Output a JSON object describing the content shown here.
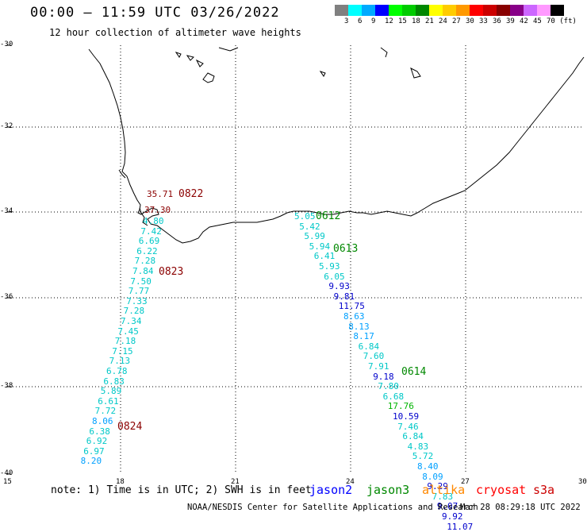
{
  "title": "00:00 – 11:59 UTC 03/26/2022",
  "subtitle": "12 hour collection of altimeter wave heights",
  "legend": {
    "colors": [
      "#808080",
      "#00ffff",
      "#00aaff",
      "#0000ff",
      "#00ff00",
      "#00cc00",
      "#008800",
      "#ffff00",
      "#ffcc00",
      "#ff9900",
      "#ff0000",
      "#cc0000",
      "#880000",
      "#880088",
      "#cc66ff",
      "#ff99ff",
      "#000000"
    ],
    "labels": [
      "3",
      "6",
      "9",
      "12",
      "15",
      "18",
      "21",
      "24",
      "27",
      "30",
      "33",
      "36",
      "39",
      "42",
      "45",
      "70 (ft)"
    ]
  },
  "axes": {
    "lat_labels": [
      "-30",
      "-32",
      "-34",
      "-36",
      "-38",
      "-40"
    ],
    "lon_labels": [
      "15",
      "18",
      "21",
      "24",
      "27",
      "30"
    ]
  },
  "tracks": [
    {
      "satellite": "cryosat",
      "color": "#8b0000",
      "times": [
        {
          "label": "0822",
          "lon": 18.7,
          "lat": -33.8
        },
        {
          "label": "0823",
          "lon": 18.9,
          "lat": -35.4
        },
        {
          "label": "0824",
          "lon": 18.0,
          "lat": -38.9
        }
      ],
      "points": [
        {
          "value": "35.71",
          "color": "#8b0000"
        },
        {
          "value": "37.30",
          "color": "#8b0000"
        },
        {
          "value": "4.80",
          "color": "#00c8c8"
        },
        {
          "value": "7.42",
          "color": "#00c8c8"
        },
        {
          "value": "6.69",
          "color": "#00c8c8"
        },
        {
          "value": "6.22",
          "color": "#00c8c8"
        },
        {
          "value": "7.28",
          "color": "#00c8c8"
        },
        {
          "value": "7.84",
          "color": "#00c8c8"
        },
        {
          "value": "7.50",
          "color": "#00c8c8"
        },
        {
          "value": "7.77",
          "color": "#00c8c8"
        },
        {
          "value": "7.33",
          "color": "#00c8c8"
        },
        {
          "value": "7.28",
          "color": "#00c8c8"
        },
        {
          "value": "7.34",
          "color": "#00c8c8"
        },
        {
          "value": "7.45",
          "color": "#00c8c8"
        },
        {
          "value": "7.18",
          "color": "#00c8c8"
        },
        {
          "value": "7.15",
          "color": "#00c8c8"
        },
        {
          "value": "7.13",
          "color": "#00c8c8"
        },
        {
          "value": "6.78",
          "color": "#00c8c8"
        },
        {
          "value": "6.83",
          "color": "#00c8c8"
        },
        {
          "value": "5.89",
          "color": "#00c8c8"
        },
        {
          "value": "6.61",
          "color": "#00c8c8"
        },
        {
          "value": "7.72",
          "color": "#00c8c8"
        },
        {
          "value": "8.06",
          "color": "#00a0ff"
        },
        {
          "value": "6.38",
          "color": "#00c8c8"
        },
        {
          "value": "6.92",
          "color": "#00c8c8"
        },
        {
          "value": "6.97",
          "color": "#00c8c8"
        },
        {
          "value": "8.20",
          "color": "#00a0ff"
        }
      ]
    },
    {
      "satellite": "jason3",
      "color": "#008800",
      "times": [
        {
          "label": "0612",
          "lon": 22.7,
          "lat": -34.05
        },
        {
          "label": "0613",
          "lon": 23.6,
          "lat": -34.85
        },
        {
          "label": "0614",
          "lon": 24.65,
          "lat": -37.85
        }
      ],
      "points": [
        {
          "value": "5.05",
          "color": "#00c8c8"
        },
        {
          "value": "5.42",
          "color": "#00c8c8"
        },
        {
          "value": "5.99",
          "color": "#00c8c8"
        },
        {
          "value": "5.94",
          "color": "#00c8c8"
        },
        {
          "value": "6.41",
          "color": "#00c8c8"
        },
        {
          "value": "5.93",
          "color": "#00c8c8"
        },
        {
          "value": "6.05",
          "color": "#00c8c8"
        },
        {
          "value": "9.93",
          "color": "#0000cc"
        },
        {
          "value": "9.81",
          "color": "#0000cc"
        },
        {
          "value": "11.75",
          "color": "#0000cc"
        },
        {
          "value": "8.63",
          "color": "#00a0ff"
        },
        {
          "value": "8.13",
          "color": "#00a0ff"
        },
        {
          "value": "8.17",
          "color": "#00a0ff"
        },
        {
          "value": "6.84",
          "color": "#00c8c8"
        },
        {
          "value": "7.60",
          "color": "#00c8c8"
        },
        {
          "value": "7.91",
          "color": "#00c8c8"
        },
        {
          "value": "9.18",
          "color": "#0000cc"
        },
        {
          "value": "7.80",
          "color": "#00c8c8"
        },
        {
          "value": "6.68",
          "color": "#00c8c8"
        },
        {
          "value": "17.76",
          "color": "#00b400"
        },
        {
          "value": "10.59",
          "color": "#0000cc"
        },
        {
          "value": "7.46",
          "color": "#00c8c8"
        },
        {
          "value": "6.84",
          "color": "#00c8c8"
        },
        {
          "value": "4.83",
          "color": "#00c8c8"
        },
        {
          "value": "5.72",
          "color": "#00c8c8"
        },
        {
          "value": "8.40",
          "color": "#00a0ff"
        },
        {
          "value": "8.09",
          "color": "#00a0ff"
        },
        {
          "value": "9.29",
          "color": "#0000cc"
        },
        {
          "value": "7.83",
          "color": "#00c8c8"
        },
        {
          "value": "9.07",
          "color": "#0000cc"
        },
        {
          "value": "9.92",
          "color": "#0000cc"
        },
        {
          "value": "11.07",
          "color": "#0000cc"
        }
      ]
    }
  ],
  "note": "note: 1) Time is in UTC; 2) SWH is in feet",
  "satellites": [
    {
      "name": "jason2",
      "color": "#0000ff"
    },
    {
      "name": "jason3",
      "color": "#008800"
    },
    {
      "name": "altika",
      "color": "#ff8800"
    },
    {
      "name": "cryosat",
      "color": "#ff0000"
    },
    {
      "name": "s3a",
      "color": "#cc0000"
    }
  ],
  "credit": "NOAA/NESDIS Center for Satellite Applications and Research",
  "timestamp": "Mar 28 08:29:18 UTC 2022"
}
